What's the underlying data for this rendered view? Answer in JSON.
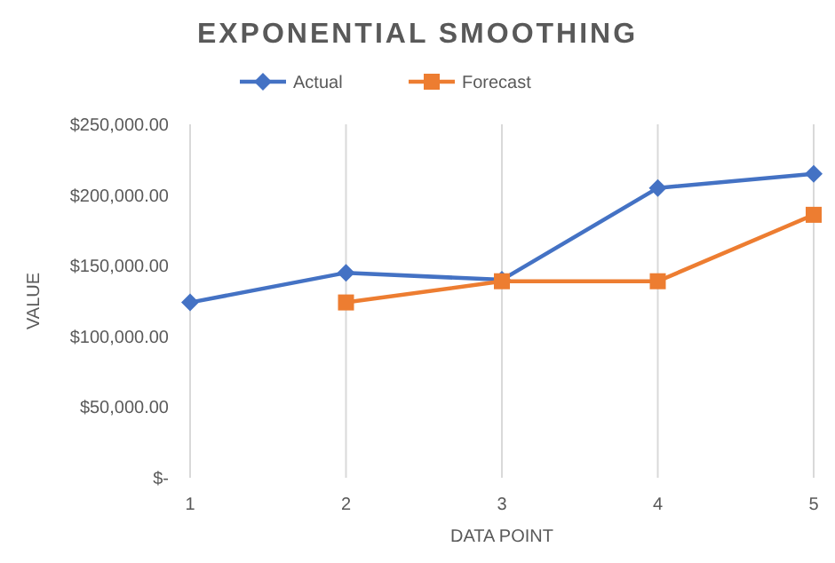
{
  "chart_data": {
    "type": "line",
    "title": "EXPONENTIAL SMOOTHING",
    "xlabel": "DATA POINT",
    "ylabel": "VALUE",
    "x": [
      1,
      2,
      3,
      4,
      5
    ],
    "xlim": [
      1,
      5
    ],
    "xticks": [
      1,
      2,
      3,
      4,
      5
    ],
    "ylim": [
      0,
      250000
    ],
    "yticks": [
      {
        "value": 0,
        "label": "$-"
      },
      {
        "value": 50000,
        "label": "$50,000.00"
      },
      {
        "value": 100000,
        "label": "$100,000.00"
      },
      {
        "value": 150000,
        "label": "$150,000.00"
      },
      {
        "value": 200000,
        "label": "$200,000.00"
      },
      {
        "value": 250000,
        "label": "$250,000.00"
      }
    ],
    "grid": "x",
    "legend": "top",
    "series": [
      {
        "name": "Actual",
        "color": "#4472c4",
        "marker": "diamond",
        "values": [
          124000,
          145000,
          140000,
          205000,
          215000
        ]
      },
      {
        "name": "Forecast",
        "color": "#ed7d31",
        "marker": "square",
        "values": [
          null,
          124000,
          139000,
          139000,
          186000
        ]
      }
    ]
  }
}
